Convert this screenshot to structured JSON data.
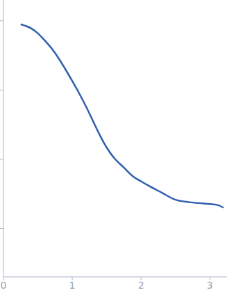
{
  "chart_data": {
    "type": "line",
    "x": [
      0.25,
      0.4,
      0.5,
      0.6,
      0.7,
      0.8,
      0.9,
      1.0,
      1.1,
      1.2,
      1.3,
      1.4,
      1.5,
      1.6,
      1.75,
      1.9,
      2.0,
      2.1,
      2.3,
      2.5,
      2.7,
      2.9,
      3.1,
      3.2
    ],
    "values": [
      0.89,
      0.78,
      0.66,
      0.52,
      0.4,
      0.29,
      0.2,
      0.135,
      0.09,
      0.058,
      0.036,
      0.0224,
      0.0148,
      0.0107,
      0.0076,
      0.0055,
      0.0048,
      0.0042,
      0.0033,
      0.0026,
      0.0024,
      0.0023,
      0.0022,
      0.002
    ],
    "color": "#2f5fad",
    "xlim": [
      0,
      3.25
    ],
    "xticks": [
      0,
      1,
      2,
      3
    ],
    "ylim": [
      0.0002,
      2
    ],
    "yticks": [
      0.001,
      0.01,
      0.1,
      1
    ],
    "log": "y",
    "tick_labels": "x"
  }
}
